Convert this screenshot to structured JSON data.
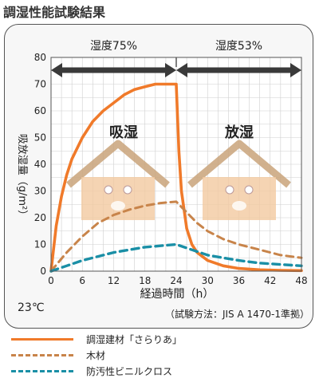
{
  "title": "調湿性能試験結果",
  "colors": {
    "choshitsu": "#f07a2a",
    "wood": "#c8844a",
    "vinyl": "#1a8fa6",
    "arrow": "#3a3a3a",
    "house": "#f2c9a0"
  },
  "phases": [
    {
      "label": "湿度75%",
      "x_start": 0,
      "x_end": 24
    },
    {
      "label": "湿度53%",
      "x_start": 24,
      "x_end": 48
    }
  ],
  "annotations": {
    "absorb": "吸湿",
    "release": "放湿",
    "temperature": "23℃",
    "method": "（試験方法：JIS A 1470-1準拠）"
  },
  "chart_data": {
    "type": "line",
    "title": "調湿性能試験結果",
    "xlabel": "経過時間（h）",
    "ylabel": "吸放湿量（g/m²）",
    "xlim": [
      0,
      48
    ],
    "ylim": [
      0,
      80
    ],
    "x_ticks": [
      0,
      6,
      12,
      18,
      24,
      30,
      36,
      42,
      48
    ],
    "y_ticks": [
      0,
      10,
      20,
      30,
      40,
      50,
      60,
      70,
      80
    ],
    "grid": true,
    "legend_position": "bottom",
    "series": [
      {
        "name": "調湿建材「さらりあ」",
        "style": "solid",
        "x": [
          0,
          1,
          2,
          3,
          4,
          6,
          8,
          10,
          12,
          14,
          16,
          18,
          20,
          22,
          24,
          24.5,
          25,
          26,
          27,
          28,
          30,
          33,
          36,
          40,
          44,
          48
        ],
        "y": [
          0,
          17,
          28,
          36,
          42,
          50,
          56,
          60,
          63,
          66,
          68,
          69,
          70,
          70,
          70,
          45,
          30,
          16,
          10,
          7,
          4,
          2,
          1,
          0.5,
          0.3,
          0.2
        ]
      },
      {
        "name": "木材",
        "style": "dashed",
        "x": [
          0,
          3,
          6,
          9,
          12,
          15,
          18,
          21,
          24,
          26,
          28,
          30,
          33,
          36,
          40,
          44,
          48
        ],
        "y": [
          0,
          7,
          13,
          18,
          21,
          23,
          24.5,
          25.5,
          26,
          22,
          18,
          15,
          12,
          10,
          8,
          6,
          5
        ]
      },
      {
        "name": "防汚性ビニルクロス",
        "style": "dashed",
        "x": [
          0,
          3,
          6,
          9,
          12,
          15,
          18,
          21,
          24,
          27,
          30,
          33,
          36,
          40,
          44,
          48
        ],
        "y": [
          0,
          2,
          4,
          5.5,
          7,
          8,
          9,
          9.5,
          10,
          8,
          6,
          5,
          4,
          3,
          2.5,
          2
        ]
      }
    ]
  }
}
